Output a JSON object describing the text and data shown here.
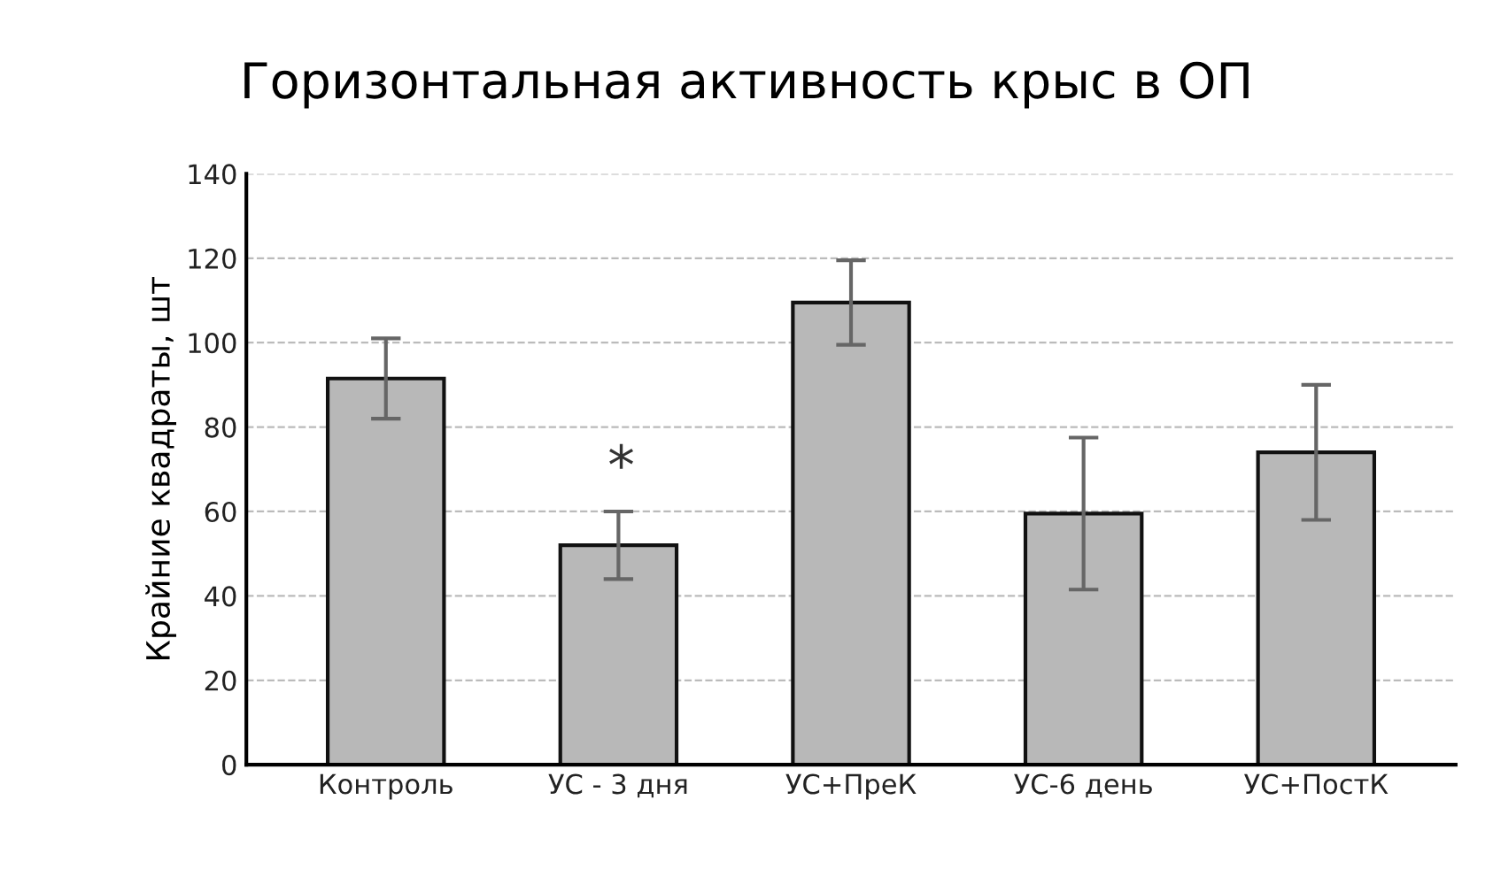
{
  "chart_data": {
    "type": "bar",
    "title": "Горизонтальная активность крыс в ОП",
    "ylabel": "Крайние квадраты, шт",
    "categories": [
      "Контроль",
      "УС - 3 дня",
      "УС+ПреК",
      "УС-6 день",
      "УС+ПостК"
    ],
    "values": [
      91.5,
      52,
      109.5,
      59.5,
      74
    ],
    "errors": [
      9.5,
      8,
      10,
      18,
      16
    ],
    "color": "#b8b8b8",
    "ylim": [
      0,
      140
    ],
    "yticks": [
      0,
      20,
      40,
      60,
      80,
      100,
      120,
      140
    ],
    "grid": "y",
    "annotations": [
      "*"
    ]
  }
}
